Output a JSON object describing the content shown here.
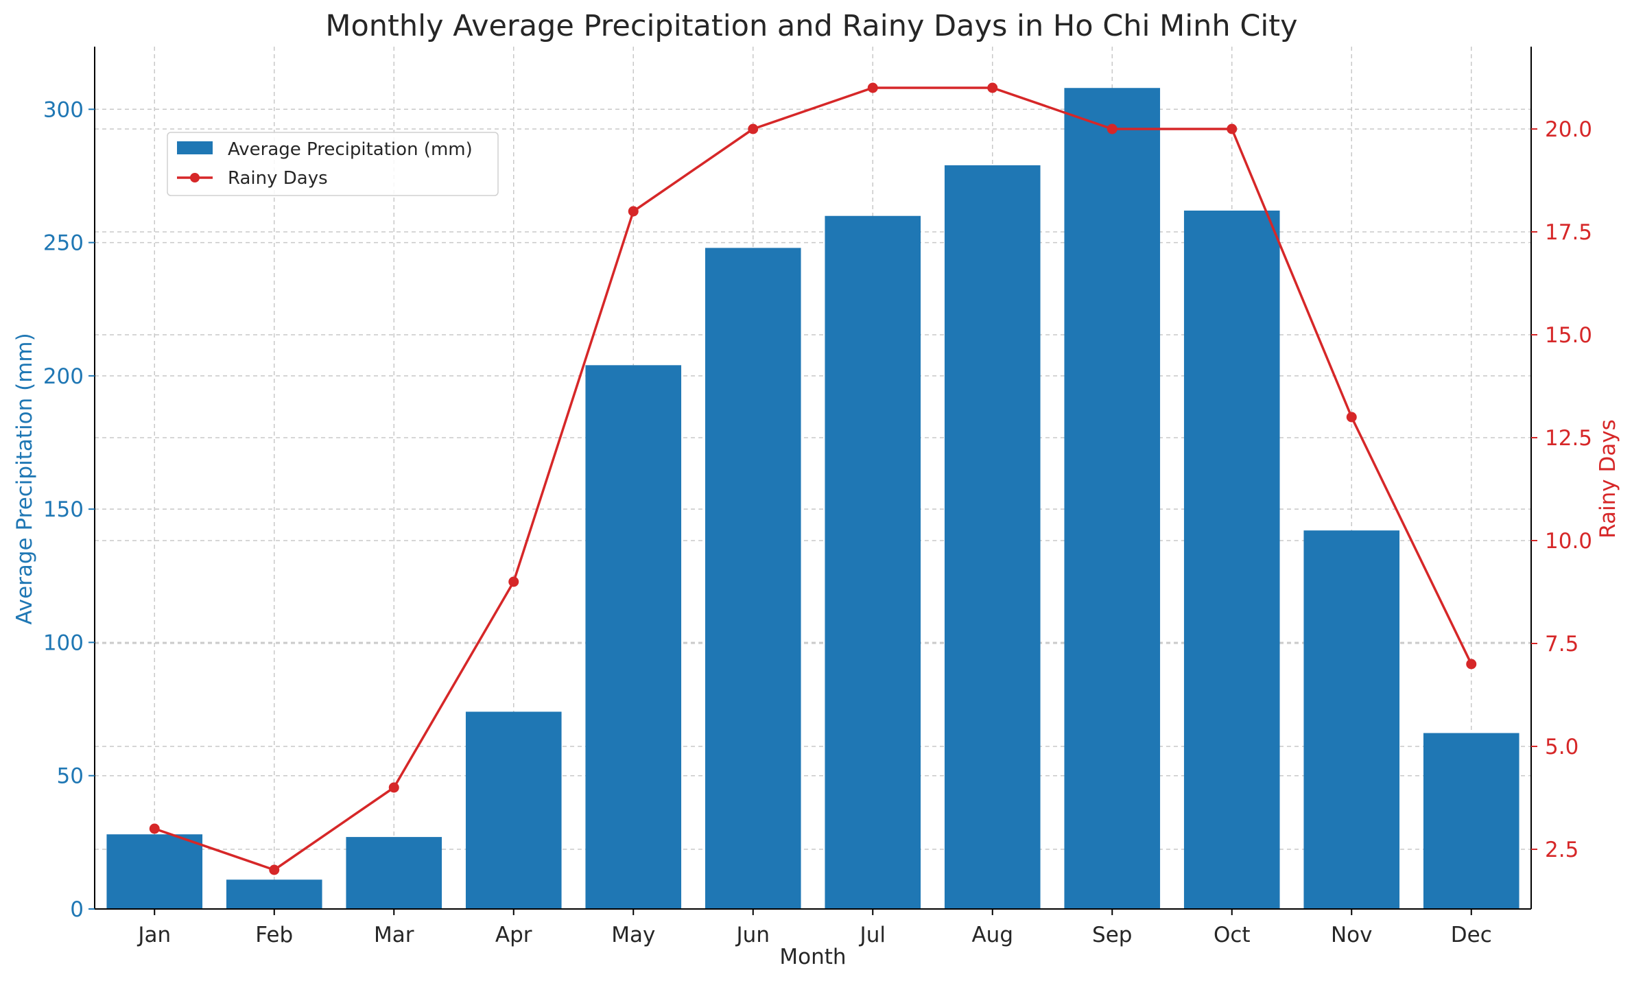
{
  "chart_data": {
    "type": "bar",
    "title": "Monthly Average Precipitation and Rainy Days in Ho Chi Minh City",
    "xlabel": "Month",
    "ylabel": "Average Precipitation (mm)",
    "y2label": "Rainy Days",
    "categories": [
      "Jan",
      "Feb",
      "Mar",
      "Apr",
      "May",
      "Jun",
      "Jul",
      "Aug",
      "Sep",
      "Oct",
      "Nov",
      "Dec"
    ],
    "series": [
      {
        "name": "Average Precipitation (mm)",
        "type": "bar",
        "axis": "left",
        "color": "#1f77b4",
        "values": [
          28,
          11,
          27,
          74,
          204,
          248,
          260,
          279,
          308,
          262,
          142,
          66
        ]
      },
      {
        "name": "Rainy Days",
        "type": "line",
        "axis": "right",
        "color": "#d62728",
        "values": [
          3,
          2,
          4,
          9,
          18,
          20,
          21,
          21,
          20,
          20,
          13,
          7
        ]
      }
    ],
    "ylim": [
      0,
      323.5
    ],
    "y2lim": [
      1.05,
      22.0
    ],
    "yticks": [
      "0",
      "50",
      "100",
      "150",
      "200",
      "250",
      "300"
    ],
    "y2ticks": [
      "2.5",
      "5.0",
      "7.5",
      "10.0",
      "12.5",
      "15.0",
      "17.5",
      "20.0"
    ],
    "grid": true,
    "legend": "upper-left"
  }
}
